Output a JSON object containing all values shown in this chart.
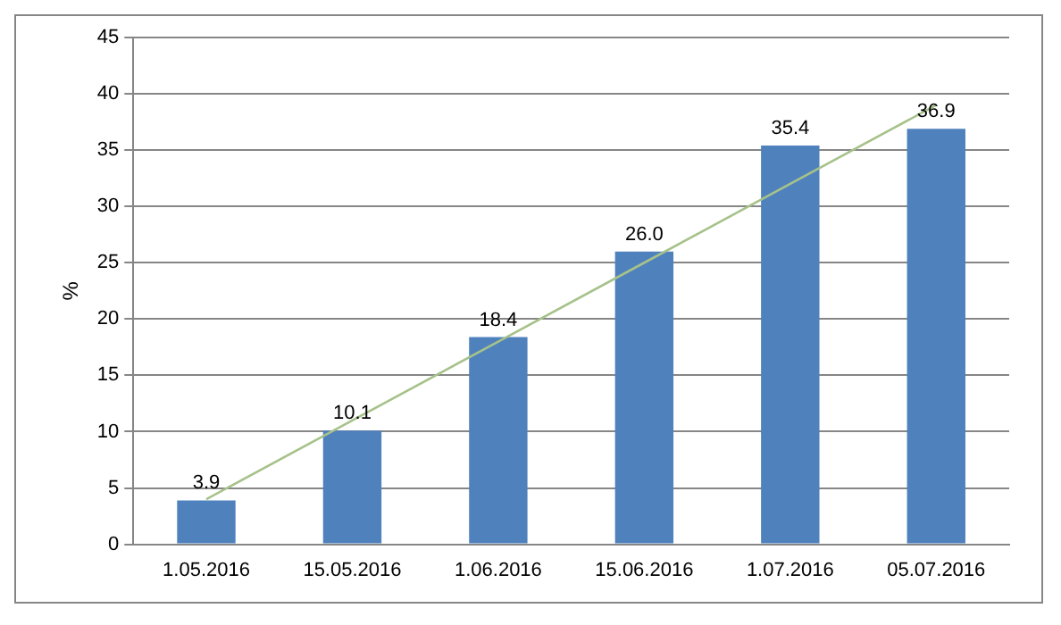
{
  "chart_data": {
    "type": "bar",
    "ylabel": "%",
    "categories": [
      "1.05.2016",
      "15.05.2016",
      "1.06.2016",
      "15.06.2016",
      "1.07.2016",
      "05.07.2016"
    ],
    "series": [
      {
        "color": "#4f81bd",
        "values": [
          3.9,
          10.1,
          18.4,
          26.0,
          35.4,
          36.9
        ],
        "value_labels": [
          "3.9",
          "10.1",
          "18.4",
          "26.0",
          "35.4",
          "36.9"
        ]
      },
      {
        "type": "line",
        "color": "#a6c28a",
        "values": [
          4,
          11,
          18,
          25,
          32,
          39
        ]
      }
    ],
    "ylim": [
      0,
      45
    ],
    "yticks": [
      0,
      5,
      10,
      15,
      20,
      25,
      30,
      35,
      40,
      45
    ],
    "grid": "y",
    "legend": false,
    "marker": "none"
  }
}
